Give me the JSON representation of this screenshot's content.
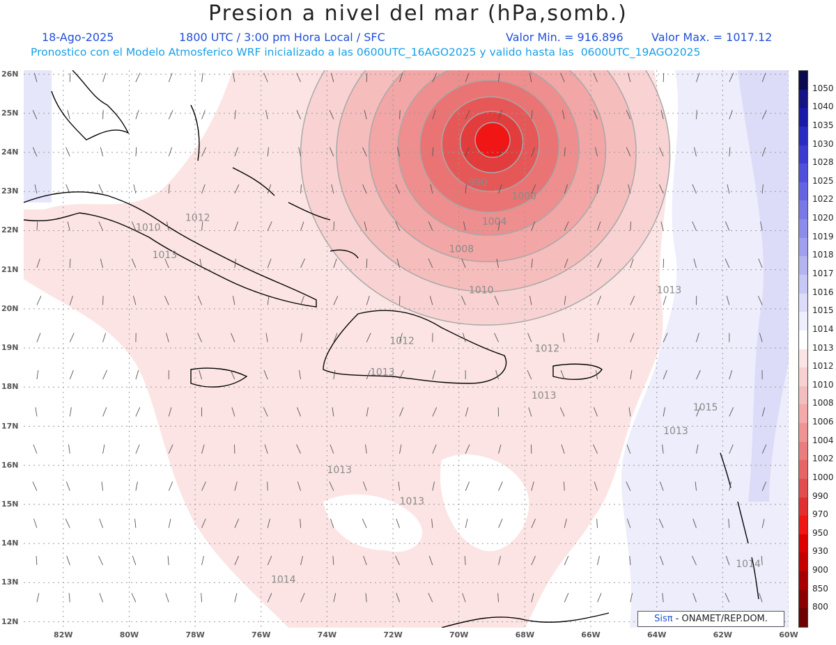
{
  "header": {
    "title": "Presion a nivel del mar (hPa,somb.)",
    "date": "18-Ago-2025",
    "time": "1800 UTC / 3:00 pm Hora Local / SFC",
    "min_label": "Valor Min. = 916.896",
    "max_label": "Valor Max. = 1017.12",
    "forecast_note": "Pronostico con el Modelo Atmosferico WRF inicializado a las 0600UTC_16AGO2025 y valido hasta las  0600UTC_19AGO2025"
  },
  "map": {
    "lat_labels": [
      "26N",
      "25N",
      "24N",
      "23N",
      "22N",
      "21N",
      "20N",
      "19N",
      "18N",
      "17N",
      "16N",
      "15N",
      "14N",
      "13N",
      "12N"
    ],
    "lon_labels": [
      "82W",
      "80W",
      "78W",
      "76W",
      "74W",
      "72W",
      "70W",
      "68W",
      "66W",
      "64W",
      "62W",
      "60W"
    ],
    "contour_labels": [
      "990",
      "1000",
      "1004",
      "1008",
      "1010",
      "1012",
      "1013",
      "1012",
      "1012",
      "1013",
      "1013",
      "1013",
      "1013",
      "1014",
      "1015",
      "1013",
      "1013",
      "1014",
      "1010"
    ],
    "low_center": {
      "lat": 24.3,
      "lon": -69.2,
      "min_pressure": 916.896
    }
  },
  "colorbar": {
    "levels": [
      "1050",
      "1040",
      "1035",
      "1030",
      "1028",
      "1025",
      "1022",
      "1020",
      "1019",
      "1018",
      "1017",
      "1016",
      "1015",
      "1014",
      "1013",
      "1012",
      "1010",
      "1008",
      "1006",
      "1004",
      "1002",
      "1000",
      "990",
      "970",
      "950",
      "930",
      "900",
      "850",
      "800"
    ],
    "colors": [
      "#0a0a4e",
      "#141482",
      "#1a1aa8",
      "#2a2ac4",
      "#3c3cd2",
      "#5050dc",
      "#6464e2",
      "#7878e6",
      "#8c8cea",
      "#a0a0ee",
      "#b4b4f2",
      "#c8c8f6",
      "#dcdcfa",
      "#eeeefc",
      "#ffffff",
      "#fbe4e4",
      "#f8d2d2",
      "#f5bebe",
      "#f2aaaa",
      "#ee9494",
      "#ea7e7e",
      "#e66666",
      "#e24e4e",
      "#e23030",
      "#f01616",
      "#dd0000",
      "#c40000",
      "#a80000",
      "#8a0000",
      "#6e0000"
    ]
  },
  "credit": {
    "brand": "Sisπ",
    "text": " - ONAMET/REP.DOM."
  }
}
